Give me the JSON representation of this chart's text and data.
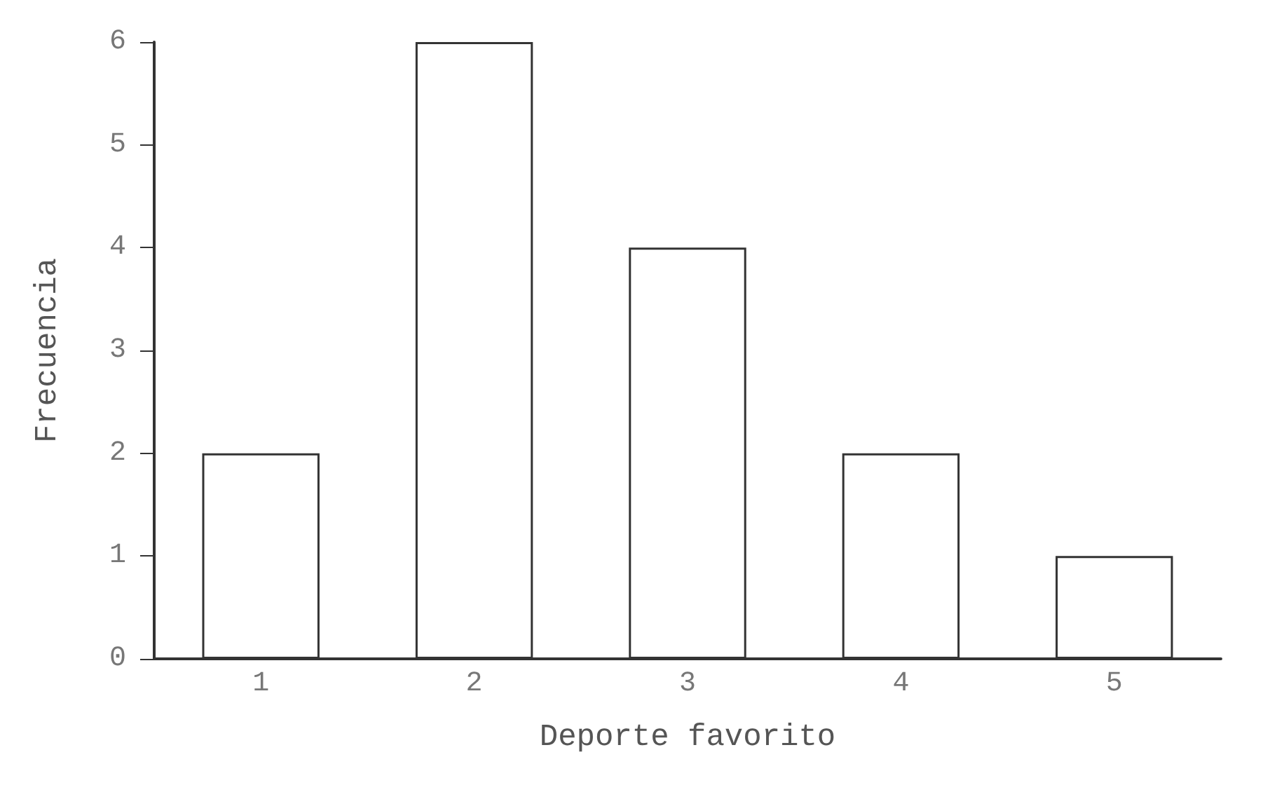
{
  "chart_data": {
    "type": "bar",
    "xlabel": "Deporte favorito",
    "ylabel": "Frecuencia",
    "categories": [
      "1",
      "2",
      "3",
      "4",
      "5"
    ],
    "values": [
      2,
      6,
      4,
      2,
      1
    ],
    "color": "#ffffff",
    "ylim": [
      0,
      6
    ],
    "yticks": [
      0,
      1,
      2,
      3,
      4,
      5,
      6
    ],
    "grid": false
  }
}
